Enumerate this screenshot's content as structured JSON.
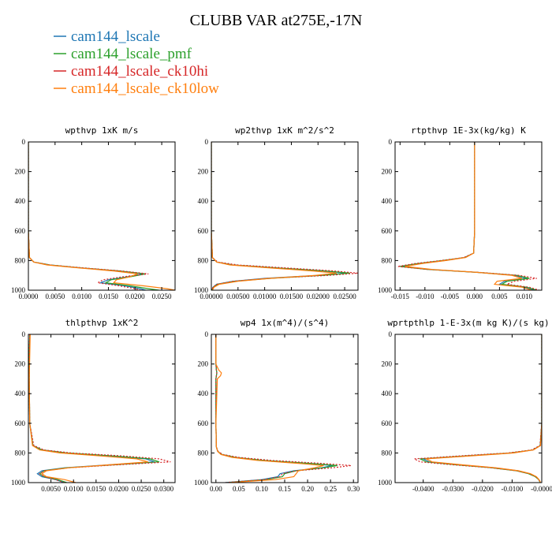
{
  "figure": {
    "title": "CLUBB VAR at275E,-17N"
  },
  "colors": {
    "series": [
      "#1f77b4",
      "#2ca02c",
      "#d62728",
      "#ff7f0e"
    ]
  },
  "chart_data": [
    {
      "type": "line",
      "title": "wpthvp   1xK m/s",
      "xlabel": "",
      "ylabel": "",
      "xlim": [
        0.0,
        0.0275
      ],
      "ylim": [
        1000,
        0
      ],
      "xticks": [
        0.0,
        0.005,
        0.01,
        0.015,
        0.02,
        0.025
      ],
      "xtick_labels": [
        "0.0000",
        "0.0050",
        "0.0100",
        "0.0150",
        "0.0200",
        "0.0250"
      ],
      "yticks": [
        0,
        200,
        400,
        600,
        800,
        1000
      ],
      "ytick_labels": [
        "0",
        "200",
        "400",
        "600",
        "800",
        "1000"
      ],
      "y": [
        0,
        300,
        600,
        780,
        810,
        830,
        850,
        870,
        890,
        910,
        930,
        950,
        970,
        990,
        1000
      ],
      "series": [
        {
          "name": "cam144_lscale",
          "values": [
            0,
            0,
            0,
            0.0002,
            0.001,
            0.004,
            0.01,
            0.017,
            0.0215,
            0.0185,
            0.015,
            0.0135,
            0.018,
            0.021,
            0.022
          ]
        },
        {
          "name": "cam144_lscale_pmf",
          "values": [
            0,
            0,
            0,
            0.0002,
            0.001,
            0.004,
            0.01,
            0.017,
            0.022,
            0.019,
            0.0155,
            0.0145,
            0.019,
            0.0225,
            0.0245
          ]
        },
        {
          "name": "cam144_lscale_ck10hi",
          "values": [
            0,
            0,
            0,
            0.0002,
            0.001,
            0.004,
            0.0105,
            0.0175,
            0.0225,
            0.0175,
            0.014,
            0.013,
            0.017,
            0.02,
            0.021
          ]
        },
        {
          "name": "cam144_lscale_ck10low",
          "values": [
            0,
            0,
            0,
            0.0002,
            0.001,
            0.0035,
            0.0095,
            0.016,
            0.0205,
            0.019,
            0.0165,
            0.016,
            0.0215,
            0.026,
            0.0275
          ]
        }
      ]
    },
    {
      "type": "line",
      "title": "wp2thvp   1xK m^2/s^2",
      "xlabel": "",
      "ylabel": "",
      "xlim": [
        0.0,
        0.0275
      ],
      "ylim": [
        1000,
        0
      ],
      "xticks": [
        0.0,
        0.005,
        0.01,
        0.015,
        0.02,
        0.025
      ],
      "xtick_labels": [
        "0.00000",
        "0.00500",
        "0.01000",
        "0.01500",
        "0.02000",
        "0.02500"
      ],
      "yticks": [
        0,
        200,
        400,
        600,
        800,
        1000
      ],
      "ytick_labels": [
        "0",
        "200",
        "400",
        "600",
        "800",
        "1000"
      ],
      "y": [
        0,
        300,
        600,
        780,
        810,
        830,
        850,
        870,
        885,
        900,
        920,
        940,
        960,
        980,
        1000
      ],
      "series": [
        {
          "name": "cam144_lscale",
          "values": [
            0,
            0,
            0,
            0.0002,
            0.001,
            0.004,
            0.012,
            0.021,
            0.0255,
            0.02,
            0.01,
            0.004,
            0.001,
            0.0003,
            0.0001
          ]
        },
        {
          "name": "cam144_lscale_pmf",
          "values": [
            0,
            0,
            0,
            0.0002,
            0.001,
            0.004,
            0.0125,
            0.0215,
            0.026,
            0.021,
            0.011,
            0.0045,
            0.0012,
            0.0004,
            0.0001
          ]
        },
        {
          "name": "cam144_lscale_ck10hi",
          "values": [
            0,
            0,
            0,
            0.0002,
            0.0012,
            0.005,
            0.014,
            0.023,
            0.0275,
            0.022,
            0.0105,
            0.004,
            0.001,
            0.0003,
            0.0001
          ]
        },
        {
          "name": "cam144_lscale_ck10low",
          "values": [
            0,
            0,
            0,
            0.0002,
            0.001,
            0.0035,
            0.011,
            0.019,
            0.0235,
            0.0195,
            0.011,
            0.005,
            0.0015,
            0.0005,
            0.0002
          ]
        }
      ]
    },
    {
      "type": "line",
      "title": "rtpthvp   1E-3x(kg/kg) K",
      "xlabel": "",
      "ylabel": "",
      "xlim": [
        -0.016,
        0.0135
      ],
      "ylim": [
        1000,
        0
      ],
      "xticks": [
        -0.015,
        -0.01,
        -0.005,
        0.0,
        0.005,
        0.01
      ],
      "xtick_labels": [
        "-0.015",
        "-0.010",
        "-0.005",
        "0.000",
        "0.005",
        "0.010"
      ],
      "yticks": [
        0,
        200,
        400,
        600,
        800,
        1000
      ],
      "ytick_labels": [
        "0",
        "200",
        "400",
        "600",
        "800",
        "1000"
      ],
      "y": [
        0,
        300,
        600,
        750,
        780,
        800,
        820,
        840,
        860,
        880,
        900,
        920,
        940,
        960,
        980,
        1000
      ],
      "series": [
        {
          "name": "cam144_lscale",
          "values": [
            0,
            0,
            0,
            -0.0002,
            -0.002,
            -0.006,
            -0.011,
            -0.0145,
            -0.009,
            0.0005,
            0.008,
            0.0105,
            0.006,
            0.005,
            0.01,
            0.012
          ]
        },
        {
          "name": "cam144_lscale_pmf",
          "values": [
            0,
            0,
            0,
            -0.0002,
            -0.002,
            -0.0065,
            -0.0115,
            -0.015,
            -0.0095,
            0.0005,
            0.0085,
            0.011,
            0.0065,
            0.0055,
            0.0105,
            0.0125
          ]
        },
        {
          "name": "cam144_lscale_ck10hi",
          "values": [
            0,
            0,
            0,
            -0.0002,
            -0.0022,
            -0.0068,
            -0.012,
            -0.0155,
            -0.0095,
            0.001,
            0.009,
            0.0125,
            0.008,
            0.0065,
            0.011,
            0.013
          ]
        },
        {
          "name": "cam144_lscale_ck10low",
          "values": [
            0,
            0,
            0,
            -0.0002,
            -0.0018,
            -0.0058,
            -0.0105,
            -0.014,
            -0.0085,
            0.0005,
            0.0075,
            0.0095,
            0.0045,
            0.004,
            0.0095,
            0.0115
          ]
        }
      ]
    },
    {
      "type": "line",
      "title": "thlpthvp   1xK^2",
      "xlabel": "",
      "ylabel": "",
      "xlim": [
        0.0,
        0.0325
      ],
      "ylim": [
        1000,
        0
      ],
      "xticks": [
        0.005,
        0.01,
        0.015,
        0.02,
        0.025,
        0.03
      ],
      "xtick_labels": [
        "0.0050",
        "0.0100",
        "0.0150",
        "0.0200",
        "0.0250",
        "0.0300"
      ],
      "yticks": [
        0,
        200,
        400,
        600,
        800,
        1000
      ],
      "ytick_labels": [
        "0",
        "200",
        "400",
        "600",
        "800",
        "1000"
      ],
      "y": [
        0,
        150,
        300,
        600,
        750,
        780,
        800,
        820,
        840,
        860,
        880,
        900,
        920,
        940,
        960,
        980,
        1000
      ],
      "series": [
        {
          "name": "cam144_lscale",
          "values": [
            0.0003,
            0.0002,
            0.0002,
            0.0003,
            0.001,
            0.003,
            0.008,
            0.018,
            0.026,
            0.028,
            0.018,
            0.008,
            0.003,
            0.002,
            0.003,
            0.006,
            0.008
          ]
        },
        {
          "name": "cam144_lscale_pmf",
          "values": [
            0.0003,
            0.0002,
            0.0002,
            0.0003,
            0.001,
            0.003,
            0.0085,
            0.019,
            0.027,
            0.029,
            0.019,
            0.0085,
            0.0035,
            0.0025,
            0.0035,
            0.0065,
            0.0085
          ]
        },
        {
          "name": "cam144_lscale_ck10hi",
          "values": [
            0.0003,
            0.0002,
            0.0002,
            0.0003,
            0.0012,
            0.0035,
            0.0095,
            0.021,
            0.029,
            0.0315,
            0.02,
            0.009,
            0.0035,
            0.0025,
            0.0035,
            0.006,
            0.008
          ]
        },
        {
          "name": "cam144_lscale_ck10low",
          "values": [
            0.0004,
            0.0003,
            0.0002,
            0.0003,
            0.0009,
            0.0025,
            0.007,
            0.016,
            0.024,
            0.0265,
            0.018,
            0.009,
            0.004,
            0.003,
            0.004,
            0.008,
            0.0105
          ]
        }
      ]
    },
    {
      "type": "line",
      "title": "wp4   1x(m^4)/(s^4)",
      "xlabel": "",
      "ylabel": "",
      "xlim": [
        -0.01,
        0.31
      ],
      "ylim": [
        1000,
        0
      ],
      "xticks": [
        0.0,
        0.05,
        0.1,
        0.15,
        0.2,
        0.25,
        0.3
      ],
      "xtick_labels": [
        "0.00",
        "0.05",
        "0.10",
        "0.15",
        "0.20",
        "0.25",
        "0.30"
      ],
      "yticks": [
        0,
        200,
        400,
        600,
        800,
        1000
      ],
      "ytick_labels": [
        "0",
        "200",
        "400",
        "600",
        "800",
        "1000"
      ],
      "y": [
        0,
        200,
        240,
        260,
        280,
        300,
        600,
        760,
        790,
        810,
        830,
        850,
        870,
        885,
        900,
        920,
        940,
        960,
        980,
        1000
      ],
      "series": [
        {
          "name": "cam144_lscale",
          "values": [
            0,
            0,
            0.001,
            0.002,
            0.001,
            0,
            0,
            0.001,
            0.004,
            0.012,
            0.04,
            0.1,
            0.2,
            0.255,
            0.23,
            0.17,
            0.14,
            0.135,
            0.1,
            0.02
          ]
        },
        {
          "name": "cam144_lscale_pmf",
          "values": [
            0,
            0,
            0.001,
            0.002,
            0.001,
            0,
            0,
            0.001,
            0.004,
            0.013,
            0.042,
            0.105,
            0.205,
            0.265,
            0.235,
            0.175,
            0.15,
            0.145,
            0.11,
            0.025
          ]
        },
        {
          "name": "cam144_lscale_ck10hi",
          "values": [
            0,
            0,
            0.001,
            0.002,
            0.001,
            0,
            0,
            0.001,
            0.005,
            0.015,
            0.05,
            0.12,
            0.23,
            0.295,
            0.255,
            0.175,
            0.145,
            0.14,
            0.105,
            0.02
          ]
        },
        {
          "name": "cam144_lscale_ck10low",
          "values": [
            0,
            0,
            0.006,
            0.012,
            0.01,
            0.003,
            0,
            0.001,
            0.004,
            0.011,
            0.035,
            0.09,
            0.18,
            0.235,
            0.215,
            0.18,
            0.175,
            0.17,
            0.13,
            0.03
          ]
        }
      ]
    },
    {
      "type": "line",
      "title": "wprtpthlp   1-E-3x(m kg K)/(s kg)",
      "xlabel": "",
      "ylabel": "",
      "xlim": [
        -0.0495,
        0.0
      ],
      "ylim": [
        1000,
        0
      ],
      "xticks": [
        -0.04,
        -0.03,
        -0.02,
        -0.01,
        0.0
      ],
      "xtick_labels": [
        "-0.0400",
        "-0.0300",
        "-0.0200",
        "-0.0100",
        "-0.0000"
      ],
      "yticks": [
        0,
        200,
        400,
        600,
        800,
        1000
      ],
      "ytick_labels": [
        "0",
        "200",
        "400",
        "600",
        "800",
        "1000"
      ],
      "y": [
        0,
        300,
        600,
        750,
        780,
        800,
        820,
        840,
        860,
        880,
        900,
        920,
        940,
        960,
        980,
        1000
      ],
      "series": [
        {
          "name": "cam144_lscale",
          "values": [
            0,
            0,
            0,
            -0.0005,
            -0.003,
            -0.01,
            -0.025,
            -0.04,
            -0.038,
            -0.028,
            -0.016,
            -0.008,
            -0.004,
            -0.002,
            -0.001,
            -0.0005
          ]
        },
        {
          "name": "cam144_lscale_pmf",
          "values": [
            0,
            0,
            0,
            -0.0005,
            -0.003,
            -0.0105,
            -0.026,
            -0.041,
            -0.039,
            -0.029,
            -0.017,
            -0.0085,
            -0.0045,
            -0.0022,
            -0.001,
            -0.0005
          ]
        },
        {
          "name": "cam144_lscale_ck10hi",
          "values": [
            0,
            0,
            0,
            -0.0006,
            -0.0035,
            -0.0115,
            -0.028,
            -0.043,
            -0.041,
            -0.03,
            -0.017,
            -0.0085,
            -0.0042,
            -0.002,
            -0.001,
            -0.0005
          ]
        },
        {
          "name": "cam144_lscale_ck10low",
          "values": [
            0,
            0,
            0,
            -0.0004,
            -0.0028,
            -0.0095,
            -0.024,
            -0.039,
            -0.037,
            -0.027,
            -0.0155,
            -0.0078,
            -0.0038,
            -0.0018,
            -0.0009,
            -0.0004
          ]
        }
      ]
    }
  ]
}
